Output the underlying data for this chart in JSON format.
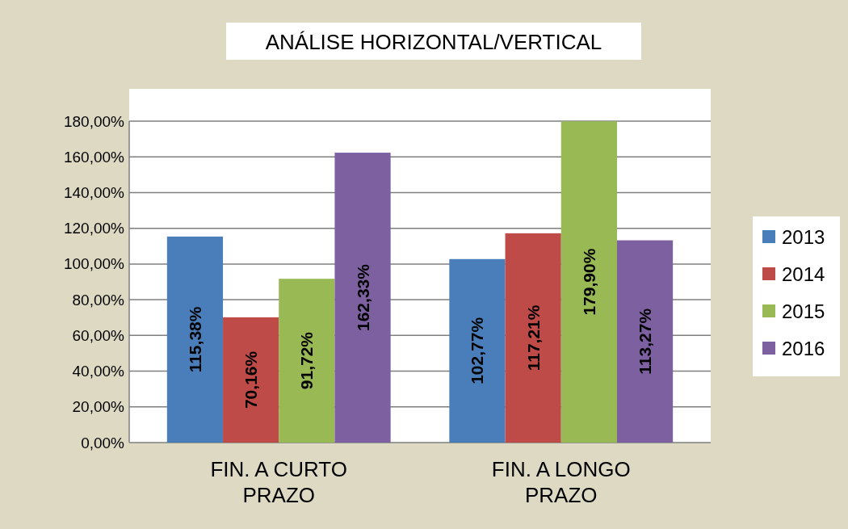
{
  "chart_data": {
    "type": "bar",
    "title": "ANÁLISE HORIZONTAL/VERTICAL",
    "categories": [
      "FIN. A CURTO PRAZO",
      "FIN. A LONGO PRAZO"
    ],
    "series": [
      {
        "name": "2013",
        "color": "#4a7ebb",
        "values": [
          115.38,
          102.77
        ],
        "value_labels": [
          "115,38%",
          "102,77%"
        ]
      },
      {
        "name": "2014",
        "color": "#be4b48",
        "values": [
          70.16,
          117.21
        ],
        "value_labels": [
          "70,16%",
          "117,21%"
        ]
      },
      {
        "name": "2015",
        "color": "#98b954",
        "values": [
          91.72,
          179.9
        ],
        "value_labels": [
          "91,72%",
          "179,90%"
        ]
      },
      {
        "name": "2016",
        "color": "#7d60a0",
        "values": [
          162.33,
          113.27
        ],
        "value_labels": [
          "162,33%",
          "113,27%"
        ]
      }
    ],
    "ylim": [
      0,
      180
    ],
    "yticks": [
      {
        "value": 0,
        "label": "0,00%"
      },
      {
        "value": 20,
        "label": "20,00%"
      },
      {
        "value": 40,
        "label": "40,00%"
      },
      {
        "value": 60,
        "label": "60,00%"
      },
      {
        "value": 80,
        "label": "80,00%"
      },
      {
        "value": 100,
        "label": "100,00%"
      },
      {
        "value": 120,
        "label": "120,00%"
      },
      {
        "value": 140,
        "label": "140,00%"
      },
      {
        "value": 160,
        "label": "160,00%"
      },
      {
        "value": 180,
        "label": "180,00%"
      }
    ],
    "grid": "y",
    "legend": "right"
  }
}
